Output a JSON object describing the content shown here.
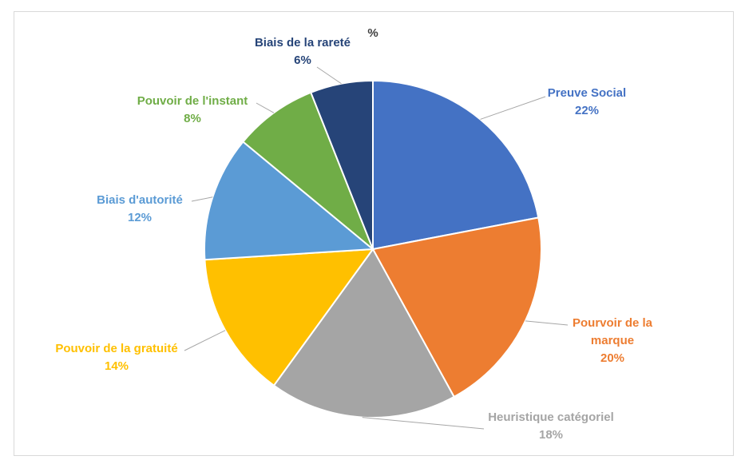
{
  "chart_data": {
    "type": "pie",
    "title": "%",
    "start_angle_deg": 0,
    "direction": "clockwise",
    "slices": [
      {
        "label": "Preuve Social",
        "value": 22,
        "value_label": "22%",
        "color": "#4472C4"
      },
      {
        "label": "Pourvoir de la marque",
        "value": 20,
        "value_label": "20%",
        "color": "#ED7D31"
      },
      {
        "label": "Heuristique catégoriel",
        "value": 18,
        "value_label": "18%",
        "color": "#A5A5A5"
      },
      {
        "label": "Pouvoir de la gratuité",
        "value": 14,
        "value_label": "14%",
        "color": "#FFC000"
      },
      {
        "label": "Biais d'autorité",
        "value": 12,
        "value_label": "12%",
        "color": "#5B9BD5"
      },
      {
        "label": "Pouvoir de l'instant",
        "value": 8,
        "value_label": "8%",
        "color": "#70AD47"
      },
      {
        "label": "Biais de la rareté",
        "value": 6,
        "value_label": "6%",
        "color": "#264478"
      }
    ],
    "label_colors": [
      "#4472C4",
      "#ED7D31",
      "#A5A5A5",
      "#FFC000",
      "#5B9BD5",
      "#70AD47",
      "#264478"
    ]
  }
}
